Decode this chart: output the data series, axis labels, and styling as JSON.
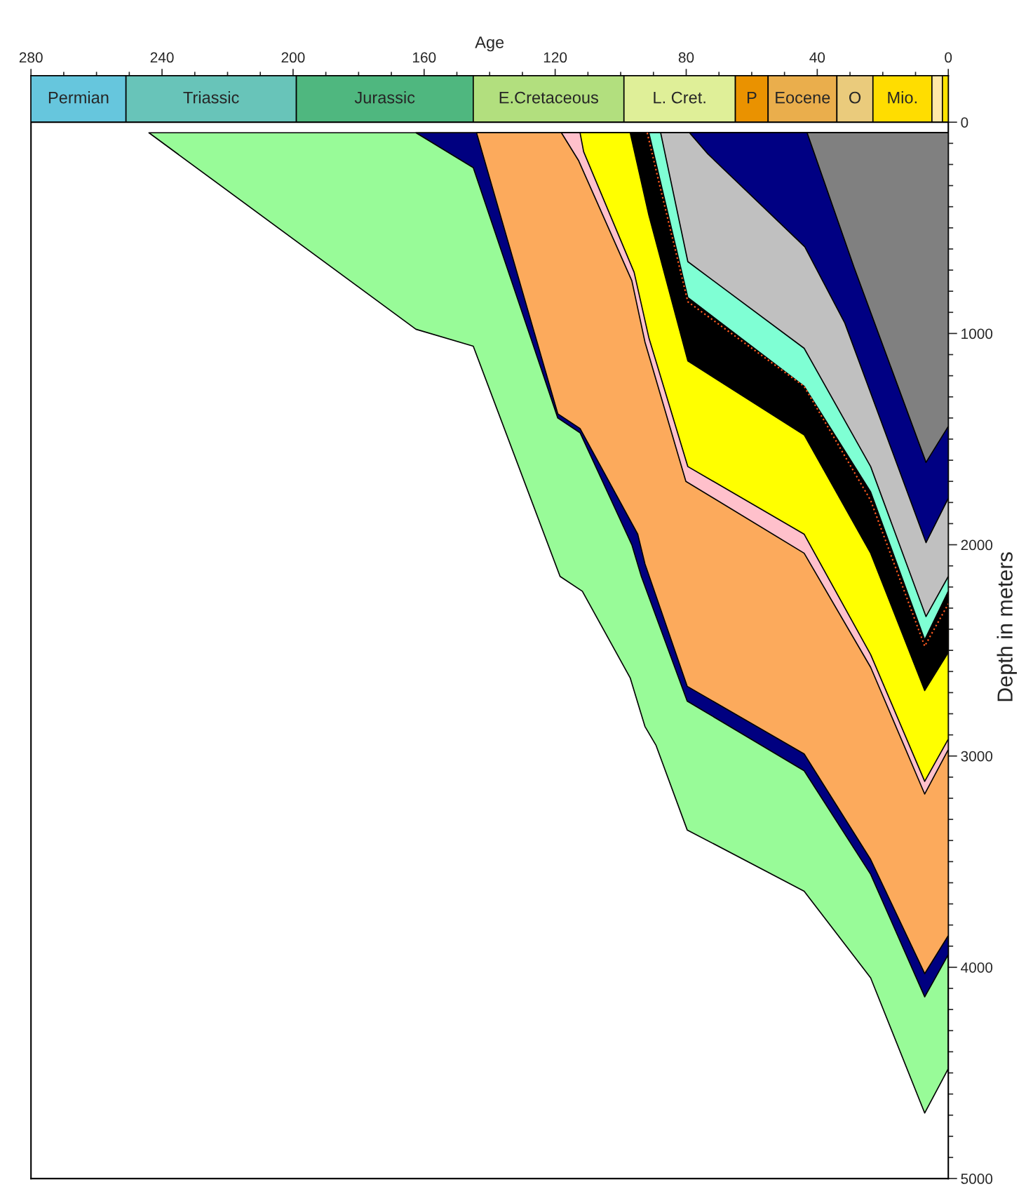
{
  "chart_data": {
    "type": "area",
    "xlabel": "Age",
    "ylabel": "Depth in meters",
    "xlim": [
      280,
      0
    ],
    "ylim": [
      5000,
      -220
    ],
    "xticks": [
      280,
      {
        "value": 270,
        "label": null
      },
      {
        "value": 260,
        "label": null
      },
      {
        "value": 250,
        "label": null
      },
      240,
      {
        "value": 230,
        "label": null
      },
      {
        "value": 220,
        "label": null
      },
      {
        "value": 210,
        "label": null
      },
      200,
      {
        "value": 190,
        "label": null
      },
      {
        "value": 180,
        "label": null
      },
      {
        "value": 170,
        "label": null
      },
      160,
      {
        "value": 150,
        "label": null
      },
      {
        "value": 140,
        "label": null
      },
      {
        "value": 130,
        "label": null
      },
      120,
      {
        "value": 110,
        "label": null
      },
      {
        "value": 100,
        "label": null
      },
      {
        "value": 90,
        "label": null
      },
      80,
      {
        "value": 70,
        "label": null
      },
      {
        "value": 60,
        "label": null
      },
      {
        "value": 50,
        "label": null
      },
      40,
      {
        "value": 30,
        "label": null
      },
      {
        "value": 20,
        "label": null
      },
      {
        "value": 10,
        "label": null
      },
      0
    ],
    "yticks": [
      0,
      {
        "value": 100,
        "label": null
      },
      {
        "value": 200,
        "label": null
      },
      {
        "value": 300,
        "label": null
      },
      {
        "value": 400,
        "label": null
      },
      {
        "value": 500,
        "label": null
      },
      {
        "value": 600,
        "label": null
      },
      {
        "value": 700,
        "label": null
      },
      {
        "value": 800,
        "label": null
      },
      {
        "value": 900,
        "label": null
      },
      1000,
      {
        "value": 1100,
        "label": null
      },
      {
        "value": 1200,
        "label": null
      },
      {
        "value": 1300,
        "label": null
      },
      {
        "value": 1400,
        "label": null
      },
      {
        "value": 1500,
        "label": null
      },
      {
        "value": 1600,
        "label": null
      },
      {
        "value": 1700,
        "label": null
      },
      {
        "value": 1800,
        "label": null
      },
      {
        "value": 1900,
        "label": null
      },
      2000,
      {
        "value": 2100,
        "label": null
      },
      {
        "value": 2200,
        "label": null
      },
      {
        "value": 2300,
        "label": null
      },
      {
        "value": 2400,
        "label": null
      },
      {
        "value": 2500,
        "label": null
      },
      {
        "value": 2600,
        "label": null
      },
      {
        "value": 2700,
        "label": null
      },
      {
        "value": 2800,
        "label": null
      },
      {
        "value": 2900,
        "label": null
      },
      3000,
      {
        "value": 3100,
        "label": null
      },
      {
        "value": 3200,
        "label": null
      },
      {
        "value": 3300,
        "label": null
      },
      {
        "value": 3400,
        "label": null
      },
      {
        "value": 3500,
        "label": null
      },
      {
        "value": 3600,
        "label": null
      },
      {
        "value": 3700,
        "label": null
      },
      {
        "value": 3800,
        "label": null
      },
      {
        "value": 3900,
        "label": null
      },
      4000,
      {
        "value": 4100,
        "label": null
      },
      {
        "value": 4200,
        "label": null
      },
      {
        "value": 4300,
        "label": null
      },
      {
        "value": 4400,
        "label": null
      },
      {
        "value": 4500,
        "label": null
      },
      {
        "value": 4600,
        "label": null
      },
      {
        "value": 4700,
        "label": null
      },
      {
        "value": 4800,
        "label": null
      },
      {
        "value": 4900,
        "label": null
      },
      5000
    ],
    "bands": [
      {
        "axis": "x",
        "from": 280,
        "to": 251,
        "label": "Permian",
        "color": "#66c6dd"
      },
      {
        "axis": "x",
        "from": 251,
        "to": 199,
        "label": "Triassic",
        "color": "#68c4b9"
      },
      {
        "axis": "x",
        "from": 199,
        "to": 145,
        "label": "Jurassic",
        "color": "#4fb77f"
      },
      {
        "axis": "x",
        "from": 145,
        "to": 99,
        "label": "E.Cretaceous",
        "color": "#b2df7e"
      },
      {
        "axis": "x",
        "from": 99,
        "to": 65,
        "label": "L. Cret.",
        "color": "#dfef98"
      },
      {
        "axis": "x",
        "from": 65,
        "to": 55,
        "label": "P",
        "color": "#ea9200"
      },
      {
        "axis": "x",
        "from": 55,
        "to": 34,
        "label": "Eocene",
        "color": "#eaae4c"
      },
      {
        "axis": "x",
        "from": 34,
        "to": 23,
        "label": "O",
        "color": "#eacb7c"
      },
      {
        "axis": "x",
        "from": 23,
        "to": 5,
        "label": "Mio.",
        "color": "#ffdd00"
      },
      {
        "axis": "x",
        "from": 5,
        "to": 1.8,
        "label": null,
        "color": "#ffe8a8"
      },
      {
        "axis": "x",
        "from": 1.8,
        "to": 0,
        "label": null,
        "color": "#ffe400"
      }
    ],
    "series": [
      {
        "color": "#98fb98",
        "x": [
          244,
          162.5,
          145,
          118.5,
          111.7,
          97.1,
          92.6,
          89.2,
          79.7,
          44,
          23.7,
          7.2,
          0
        ],
        "values": [
          50,
          980,
          1060,
          2150,
          2220,
          2630,
          2860,
          2950,
          3350,
          3640,
          4050,
          4690,
          4480
        ]
      },
      {
        "color": "#000080",
        "x": [
          162.5,
          145,
          119.2,
          112.4,
          96.6,
          93.7,
          79.7,
          44,
          23.7,
          7.2,
          0
        ],
        "values": [
          50,
          215,
          1400,
          1470,
          2000,
          2150,
          2740,
          3070,
          3560,
          4140,
          3940
        ]
      },
      {
        "color": "#fcaa5c",
        "x": [
          144,
          119.2,
          112.4,
          94.8,
          92.6,
          79.7,
          44,
          23.7,
          7.2,
          0
        ],
        "values": [
          50,
          1380,
          1450,
          1950,
          2090,
          2670,
          2990,
          3490,
          4030,
          3850
        ]
      },
      {
        "color": "#ffc0cb",
        "x": [
          118.1,
          112.9,
          96.6,
          92.6,
          80.1,
          44,
          23.7,
          7.2,
          0
        ],
        "values": [
          50,
          180,
          750,
          1040,
          1700,
          2040,
          2580,
          3180,
          2970
        ]
      },
      {
        "color": "#ffff00",
        "x": [
          112.4,
          111.3,
          95.9,
          91.4,
          79.5,
          44,
          23.7,
          7.2,
          0
        ],
        "values": [
          50,
          140,
          710,
          1020,
          1630,
          1950,
          2520,
          3120,
          2920
        ]
      },
      {
        "color": "#000000",
        "x": [
          97.1,
          91.4,
          79.5,
          44,
          23.7,
          7.2,
          0
        ],
        "values": [
          50,
          440,
          1130,
          1480,
          2040,
          2690,
          2510
        ]
      },
      {
        "color": "#7fffd4",
        "x": [
          91.4,
          79.5,
          44,
          23.7,
          7.2,
          0
        ],
        "values": [
          50,
          830,
          1250,
          1750,
          2450,
          2220
        ]
      },
      {
        "color": "#c0c0c0",
        "x": [
          87.8,
          79.5,
          44,
          23.7,
          6.8,
          0
        ],
        "values": [
          50,
          660,
          1070,
          1630,
          2340,
          2150
        ]
      },
      {
        "color": "#000083",
        "x": [
          79,
          73.4,
          43.8,
          31.6,
          6.8,
          0
        ],
        "values": [
          50,
          150,
          590,
          950,
          1990,
          1780
        ]
      },
      {
        "color": "#808080",
        "x": [
          43.1,
          28.7,
          6.8,
          0
        ],
        "values": [
          50,
          690,
          1610,
          1440
        ]
      },
      {
        "type": "line",
        "line_style": "dotted",
        "color": "#ff5a1f",
        "x": [
          91.9,
          88.7,
          79.5,
          44,
          23.7,
          7.2,
          0
        ],
        "values": [
          50,
          260,
          850,
          1250,
          1790,
          2480,
          2280
        ]
      }
    ]
  }
}
